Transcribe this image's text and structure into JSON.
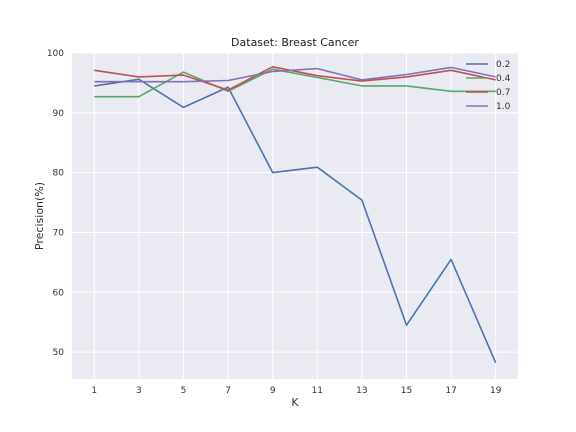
{
  "chart_data": {
    "type": "line",
    "title": "Dataset: Breast Cancer",
    "xlabel": "K",
    "ylabel": "Precision(%)",
    "x": [
      1,
      3,
      5,
      7,
      9,
      11,
      13,
      15,
      17,
      19
    ],
    "xlim": [
      0,
      20
    ],
    "ylim": [
      45.5,
      100
    ],
    "yticks": [
      50,
      60,
      70,
      80,
      90,
      100
    ],
    "grid": true,
    "legend_position": "top-right",
    "series": [
      {
        "name": "0.2",
        "color": "#4c72b0",
        "values": [
          94.5,
          95.6,
          90.9,
          94.3,
          80.0,
          80.9,
          75.4,
          54.5,
          65.5,
          48.2
        ]
      },
      {
        "name": "0.4",
        "color": "#55a868",
        "values": [
          92.7,
          92.7,
          96.8,
          93.6,
          97.3,
          95.9,
          94.5,
          94.5,
          93.6,
          93.6
        ]
      },
      {
        "name": "0.7",
        "color": "#c44e52",
        "values": [
          97.1,
          96.0,
          96.3,
          93.8,
          97.7,
          96.2,
          95.3,
          96.0,
          97.1,
          95.5
        ]
      },
      {
        "name": "1.0",
        "color": "#8172b2",
        "values": [
          95.2,
          95.2,
          95.2,
          95.4,
          96.9,
          97.4,
          95.5,
          96.4,
          97.6,
          96.0
        ]
      }
    ]
  }
}
